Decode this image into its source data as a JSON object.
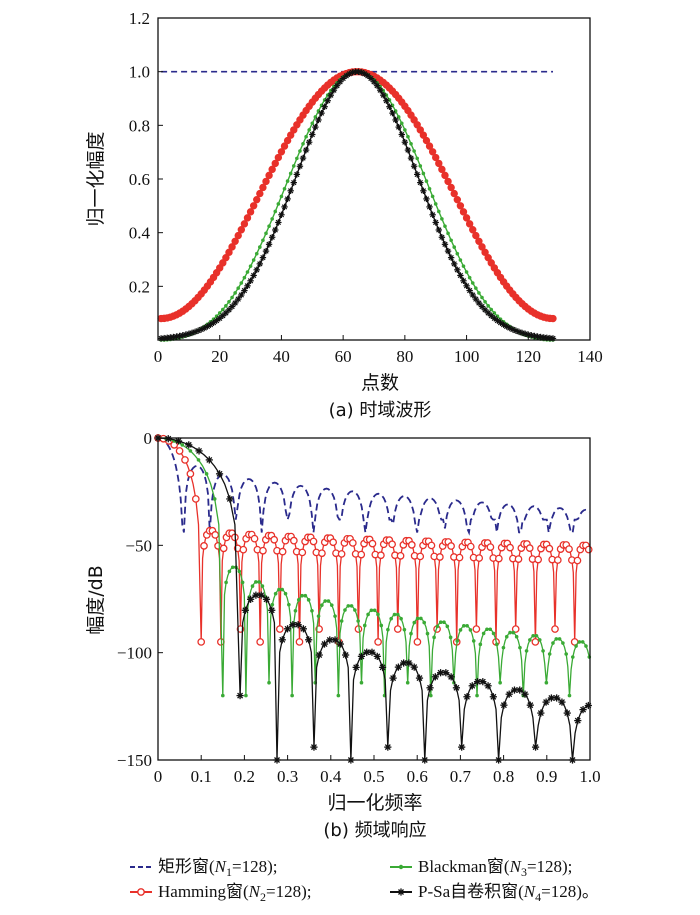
{
  "chart_data": [
    {
      "type": "line",
      "id": "time",
      "caption": "(a) 时域波形",
      "xlabel": "点数",
      "ylabel": "归一化幅度",
      "xlim": [
        0,
        140
      ],
      "ylim": [
        0,
        1.2
      ],
      "x_ticks": [
        0,
        20,
        40,
        60,
        80,
        100,
        120,
        140
      ],
      "y_ticks": [
        0.2,
        0.4,
        0.6,
        0.8,
        1.0,
        1.2
      ],
      "x_tick_labels": [
        "0",
        "20",
        "40",
        "60",
        "80",
        "100",
        "120",
        "140"
      ],
      "y_tick_labels": [
        "0.2",
        "0.4",
        "0.6",
        "0.8",
        "1.0",
        "1.2"
      ],
      "n_points": 128,
      "x_start": 1,
      "x_end": 128,
      "series": [
        {
          "name": "矩形窗",
          "color": "#2a2a8c",
          "style": "dashed",
          "marker": "none",
          "values_desc": "constant 1.0"
        },
        {
          "name": "Hamming窗",
          "color": "#e8312a",
          "style": "solid",
          "marker": "circle",
          "values_desc": "0.54-0.46cos, min 0.08 at ends, peak 1.0 at 64.5"
        },
        {
          "name": "Blackman窗",
          "color": "#3aaa35",
          "style": "solid",
          "marker": "dot",
          "values_desc": "min 0 at ends, peak 1.0 at 64.5"
        },
        {
          "name": "P-Sa自卷积窗",
          "color": "#111111",
          "style": "solid",
          "marker": "asterisk",
          "values_desc": "min 0 at ends, peak 1.0 at 64.5, narrower"
        }
      ]
    },
    {
      "type": "line",
      "id": "freq",
      "caption": "(b) 频域响应",
      "xlabel": "归一化频率",
      "ylabel": "幅度/dB",
      "xlim": [
        0,
        1.0
      ],
      "ylim": [
        -150,
        0
      ],
      "x_ticks": [
        0,
        0.1,
        0.2,
        0.3,
        0.4,
        0.5,
        0.6,
        0.7,
        0.8,
        0.9,
        1.0
      ],
      "y_ticks": [
        0,
        -50,
        -100,
        -150
      ],
      "x_tick_labels": [
        "0",
        "0.1",
        "0.2",
        "0.3",
        "0.4",
        "0.5",
        "0.6",
        "0.7",
        "0.8",
        "0.9",
        "1.0"
      ],
      "y_tick_labels": [
        "0",
        "−50",
        "−100",
        "−150"
      ],
      "series": [
        {
          "name": "矩形窗",
          "color": "#2a2a8c",
          "first_null": 0.06,
          "null_spacing": 0.06,
          "lobe_start_db": -13,
          "lobe_end_db": -34,
          "null_depth_db": -44
        },
        {
          "name": "Hamming窗",
          "color": "#e8312a",
          "first_null": 0.1,
          "null_spacing": 0.0455,
          "lobe_start_db": -43,
          "lobe_end_db": -50,
          "null_depth_db": -95
        },
        {
          "name": "Blackman窗",
          "color": "#3aaa35",
          "first_null": 0.15,
          "null_spacing": 0.0535,
          "lobe_start_db": -60,
          "lobe_end_db": -96,
          "null_depth_db": -120
        },
        {
          "name": "P-Sa自卷积窗",
          "color": "#111111",
          "first_null": 0.19,
          "null_spacing": 0.0855,
          "lobe_start_db": -73,
          "lobe_end_db": -126,
          "null_depth_db": -150
        }
      ]
    }
  ],
  "legend": {
    "items": [
      {
        "label": "矩形窗(",
        "sym": "N",
        "sub": "1",
        "rest": "=128);",
        "color": "#2a2a8c",
        "style": "dashed"
      },
      {
        "label": "Blackman窗(",
        "sym": "N",
        "sub": "3",
        "rest": "=128);",
        "color": "#3aaa35",
        "style": "solid"
      },
      {
        "label": "Hamming窗(",
        "sym": "N",
        "sub": "2",
        "rest": "=128);",
        "color": "#e8312a",
        "style": "solid"
      },
      {
        "label": "P-Sa自卷积窗(",
        "sym": "N",
        "sub": "4",
        "rest": "=128)。",
        "color": "#111111",
        "style": "solid"
      }
    ]
  }
}
